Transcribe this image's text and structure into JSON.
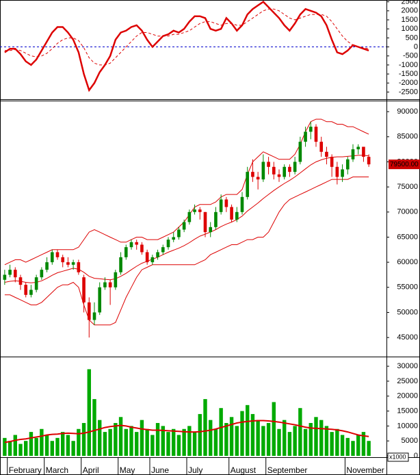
{
  "chart_data": [
    {
      "type": "line",
      "ylim": [
        -2900,
        2600
      ],
      "yticks": [
        -2500,
        -2000,
        -1500,
        -1000,
        -500,
        0,
        500,
        1000,
        1500,
        2000,
        2500
      ],
      "zero_line": {
        "value": 0,
        "color": "#0000cc"
      },
      "series": [
        {
          "color": "#dd0000",
          "dashed": false,
          "width": 2.5,
          "values": [
            -300,
            -100,
            -100,
            -400,
            -800,
            -1000,
            -700,
            -200,
            300,
            800,
            1100,
            1100,
            800,
            400,
            -300,
            -1500,
            -2400,
            -2000,
            -1400,
            -1000,
            -500,
            400,
            800,
            900,
            1100,
            1200,
            900,
            400,
            0,
            300,
            600,
            700,
            900,
            800,
            1000,
            1400,
            1700,
            1700,
            1600,
            1000,
            900,
            1000,
            1600,
            1300,
            900,
            1200,
            1800,
            2100,
            2300,
            2500,
            2200,
            1900,
            1600,
            1200,
            900,
            1300,
            1800,
            2100,
            2000,
            1900,
            1700,
            1200,
            400,
            -300,
            -400,
            -200,
            100,
            0,
            -100,
            -200
          ]
        },
        {
          "color": "#dd0000",
          "dashed": true,
          "width": 1,
          "values": [
            -200,
            -200,
            -150,
            -200,
            -350,
            -500,
            -550,
            -500,
            -350,
            -100,
            200,
            400,
            500,
            500,
            350,
            -50,
            -600,
            -900,
            -1000,
            -1000,
            -900,
            -600,
            -300,
            0,
            300,
            600,
            800,
            800,
            700,
            600,
            600,
            600,
            700,
            700,
            800,
            900,
            1100,
            1300,
            1400,
            1400,
            1300,
            1200,
            1300,
            1300,
            1200,
            1200,
            1400,
            1600,
            1800,
            2000,
            2100,
            2100,
            2000,
            1800,
            1600,
            1500,
            1600,
            1700,
            1800,
            1800,
            1800,
            1700,
            1400,
            1000,
            600,
            300,
            100,
            0,
            -50,
            -100
          ]
        }
      ]
    },
    {
      "type": "candlestick",
      "ylim": [
        41200,
        92200
      ],
      "yticks": [
        45000,
        50000,
        55000,
        60000,
        65000,
        70000,
        75000,
        80000,
        85000,
        90000
      ],
      "up_color": "#008800",
      "down_color": "#dd0000",
      "open": [
        56500,
        57500,
        58500,
        57000,
        55500,
        53500,
        54500,
        57000,
        58500,
        60000,
        62000,
        61000,
        60000,
        59500,
        60000,
        57000,
        52000,
        48500,
        50000,
        55000,
        56000,
        55000,
        58000,
        61000,
        63000,
        64000,
        63500,
        62000,
        60000,
        61000,
        62000,
        63000,
        64500,
        65000,
        66500,
        68000,
        70000,
        70500,
        70000,
        66000,
        67000,
        70000,
        72500,
        71000,
        68500,
        70000,
        73000,
        78000,
        77000,
        76500,
        80000,
        79000,
        77500,
        77000,
        79000,
        78000,
        80000,
        84000,
        86000,
        87000,
        84000,
        82000,
        81000,
        79000,
        77000,
        78500,
        80500,
        82500,
        83000,
        81000
      ],
      "high": [
        58500,
        59500,
        59000,
        57500,
        56000,
        55500,
        57500,
        59000,
        61000,
        62500,
        62500,
        61500,
        61000,
        60500,
        60500,
        57500,
        53000,
        52000,
        56000,
        57000,
        56500,
        58500,
        62000,
        63500,
        64500,
        64500,
        64000,
        62500,
        61500,
        62500,
        63500,
        65000,
        66000,
        67000,
        68500,
        70500,
        71500,
        71000,
        70000,
        68000,
        71000,
        73500,
        73000,
        71500,
        71000,
        74000,
        79000,
        80500,
        78000,
        81500,
        81000,
        80000,
        78500,
        79500,
        79500,
        81000,
        85000,
        87000,
        88000,
        87500,
        85000,
        83000,
        81500,
        80000,
        79500,
        81000,
        83500,
        83500,
        83000,
        81500
      ],
      "low": [
        55500,
        57000,
        56000,
        54500,
        53000,
        53000,
        54000,
        56500,
        58000,
        59500,
        60500,
        59000,
        59000,
        58500,
        57500,
        50000,
        45000,
        47500,
        49500,
        54500,
        51500,
        54500,
        57500,
        60500,
        62500,
        62500,
        61500,
        59500,
        59500,
        60500,
        61500,
        62500,
        64000,
        64500,
        66000,
        67500,
        69500,
        68500,
        65000,
        65000,
        66500,
        69500,
        70000,
        68000,
        68000,
        69500,
        72500,
        76000,
        74500,
        76000,
        77500,
        76500,
        76000,
        76500,
        77000,
        77500,
        79500,
        83000,
        84500,
        83000,
        81000,
        79500,
        77000,
        75500,
        76000,
        77500,
        80000,
        81500,
        80000,
        79000
      ],
      "close": [
        57500,
        58500,
        57000,
        55500,
        53500,
        54500,
        57000,
        58500,
        60000,
        62000,
        61000,
        60000,
        59500,
        60000,
        58000,
        52000,
        48500,
        50000,
        55000,
        56000,
        55000,
        58000,
        61000,
        63000,
        64000,
        63500,
        62000,
        60000,
        61000,
        62000,
        63000,
        64500,
        65000,
        66500,
        68000,
        70000,
        70500,
        70000,
        66000,
        67000,
        70000,
        72500,
        71000,
        68500,
        70000,
        73000,
        78000,
        77000,
        76500,
        80000,
        79000,
        77500,
        77000,
        79000,
        78000,
        80000,
        84000,
        86000,
        87000,
        84000,
        82000,
        81000,
        79000,
        77000,
        78500,
        80500,
        82500,
        83000,
        81000,
        79500
      ],
      "bands": [
        {
          "color": "#dd0000",
          "values": [
            59500,
            60000,
            60500,
            60500,
            60000,
            60500,
            61000,
            61500,
            62000,
            62500,
            62500,
            62500,
            62500,
            62500,
            63000,
            64500,
            66000,
            66500,
            66000,
            65500,
            65000,
            64500,
            64000,
            64000,
            64500,
            65000,
            65000,
            64500,
            64500,
            64500,
            65000,
            65500,
            66000,
            67000,
            68000,
            69500,
            71000,
            71500,
            71500,
            71500,
            72000,
            73000,
            73500,
            73500,
            73500,
            74500,
            77500,
            80000,
            81000,
            82000,
            81500,
            81000,
            80500,
            80500,
            80500,
            81500,
            83500,
            86000,
            88000,
            88500,
            88500,
            88000,
            88000,
            87500,
            87500,
            87000,
            87000,
            86500,
            86000,
            85500
          ]
        },
        {
          "color": "#dd0000",
          "values": [
            56000,
            56200,
            56300,
            56200,
            56000,
            55900,
            56000,
            56300,
            56800,
            57400,
            57900,
            58200,
            58500,
            58800,
            58600,
            58000,
            57200,
            56800,
            56700,
            56600,
            56500,
            56700,
            57200,
            57800,
            58500,
            59200,
            59800,
            60200,
            60600,
            61000,
            61500,
            62000,
            62400,
            62800,
            63300,
            63900,
            64600,
            65200,
            65600,
            66000,
            66500,
            67100,
            67600,
            68000,
            68500,
            69200,
            70200,
            71000,
            71800,
            72700,
            73500,
            74300,
            75000,
            75700,
            76300,
            77000,
            77800,
            78600,
            79400,
            80000,
            80400,
            80700,
            80900,
            81000,
            81000,
            81100,
            81200,
            81300,
            81300,
            81200
          ]
        },
        {
          "color": "#dd0000",
          "values": [
            53500,
            53500,
            53000,
            52500,
            52000,
            51500,
            51500,
            52000,
            53000,
            54000,
            55000,
            55500,
            55500,
            56000,
            55000,
            51500,
            48500,
            47500,
            47500,
            47500,
            47500,
            48000,
            50500,
            53000,
            55000,
            57000,
            58500,
            59000,
            59500,
            59500,
            59500,
            59500,
            59500,
            59500,
            59500,
            59500,
            59500,
            60000,
            60500,
            61500,
            62000,
            62500,
            63000,
            63500,
            63500,
            64000,
            64500,
            64500,
            65000,
            65000,
            66000,
            68000,
            70000,
            71500,
            72500,
            73000,
            73500,
            74000,
            74500,
            75000,
            75500,
            76000,
            76500,
            76500,
            76500,
            76500,
            77000,
            77000,
            77000,
            77000
          ]
        }
      ],
      "last_price": {
        "value": 79500,
        "label": "79500.00",
        "color": "#cc0000"
      }
    },
    {
      "type": "bar",
      "ylim": [
        -450,
        33000
      ],
      "yticks": [
        0,
        5000,
        10000,
        15000,
        20000,
        25000,
        30000
      ],
      "unit_label": "x1000",
      "categories": [
        null,
        "February",
        null,
        null,
        null,
        null,
        null,
        null,
        "March",
        null,
        null,
        null,
        null,
        null,
        null,
        "April",
        null,
        null,
        null,
        null,
        null,
        null,
        "May",
        null,
        null,
        null,
        null,
        null,
        "June",
        null,
        null,
        null,
        null,
        null,
        null,
        "July",
        null,
        null,
        null,
        null,
        null,
        null,
        null,
        "August",
        null,
        null,
        null,
        null,
        null,
        null,
        "September",
        null,
        null,
        null,
        null,
        null,
        null,
        null,
        null,
        null,
        null,
        null,
        null,
        null,
        null,
        "November",
        null,
        null,
        null,
        null
      ],
      "color": "#00aa00",
      "values": [
        6000,
        5000,
        7000,
        4000,
        5000,
        8000,
        6000,
        9000,
        7000,
        5000,
        6000,
        8000,
        7000,
        5000,
        9000,
        11000,
        29000,
        19000,
        12000,
        8000,
        9000,
        11000,
        13000,
        9000,
        10000,
        8000,
        12000,
        9000,
        7000,
        11000,
        10000,
        8000,
        9000,
        7000,
        9000,
        10000,
        8000,
        14000,
        19000,
        12000,
        9000,
        16000,
        11000,
        13000,
        10000,
        15000,
        17000,
        14000,
        12000,
        10000,
        11000,
        18000,
        9000,
        12000,
        8000,
        10000,
        16000,
        9000,
        11000,
        13000,
        12000,
        10000,
        8000,
        9000,
        7000,
        6000,
        5000,
        7000,
        8000,
        5000
      ],
      "ma": {
        "color": "#dd0000",
        "values": [
          4500,
          4800,
          5200,
          5500,
          5700,
          6000,
          6300,
          6600,
          7000,
          7200,
          7300,
          7500,
          7600,
          7500,
          7400,
          7600,
          8000,
          8500,
          9000,
          9500,
          9800,
          10000,
          10200,
          10000,
          9600,
          9300,
          9000,
          8800,
          8600,
          8600,
          8500,
          8400,
          8300,
          8200,
          8100,
          8000,
          8000,
          8100,
          8300,
          8600,
          9000,
          9500,
          10000,
          10500,
          11000,
          11300,
          11500,
          11700,
          11800,
          11800,
          11700,
          11500,
          11300,
          11000,
          10700,
          10400,
          10000,
          9600,
          9300,
          9200,
          9100,
          9000,
          8900,
          8700,
          8400,
          8000,
          7500,
          7000,
          6700,
          6500
        ]
      }
    }
  ]
}
